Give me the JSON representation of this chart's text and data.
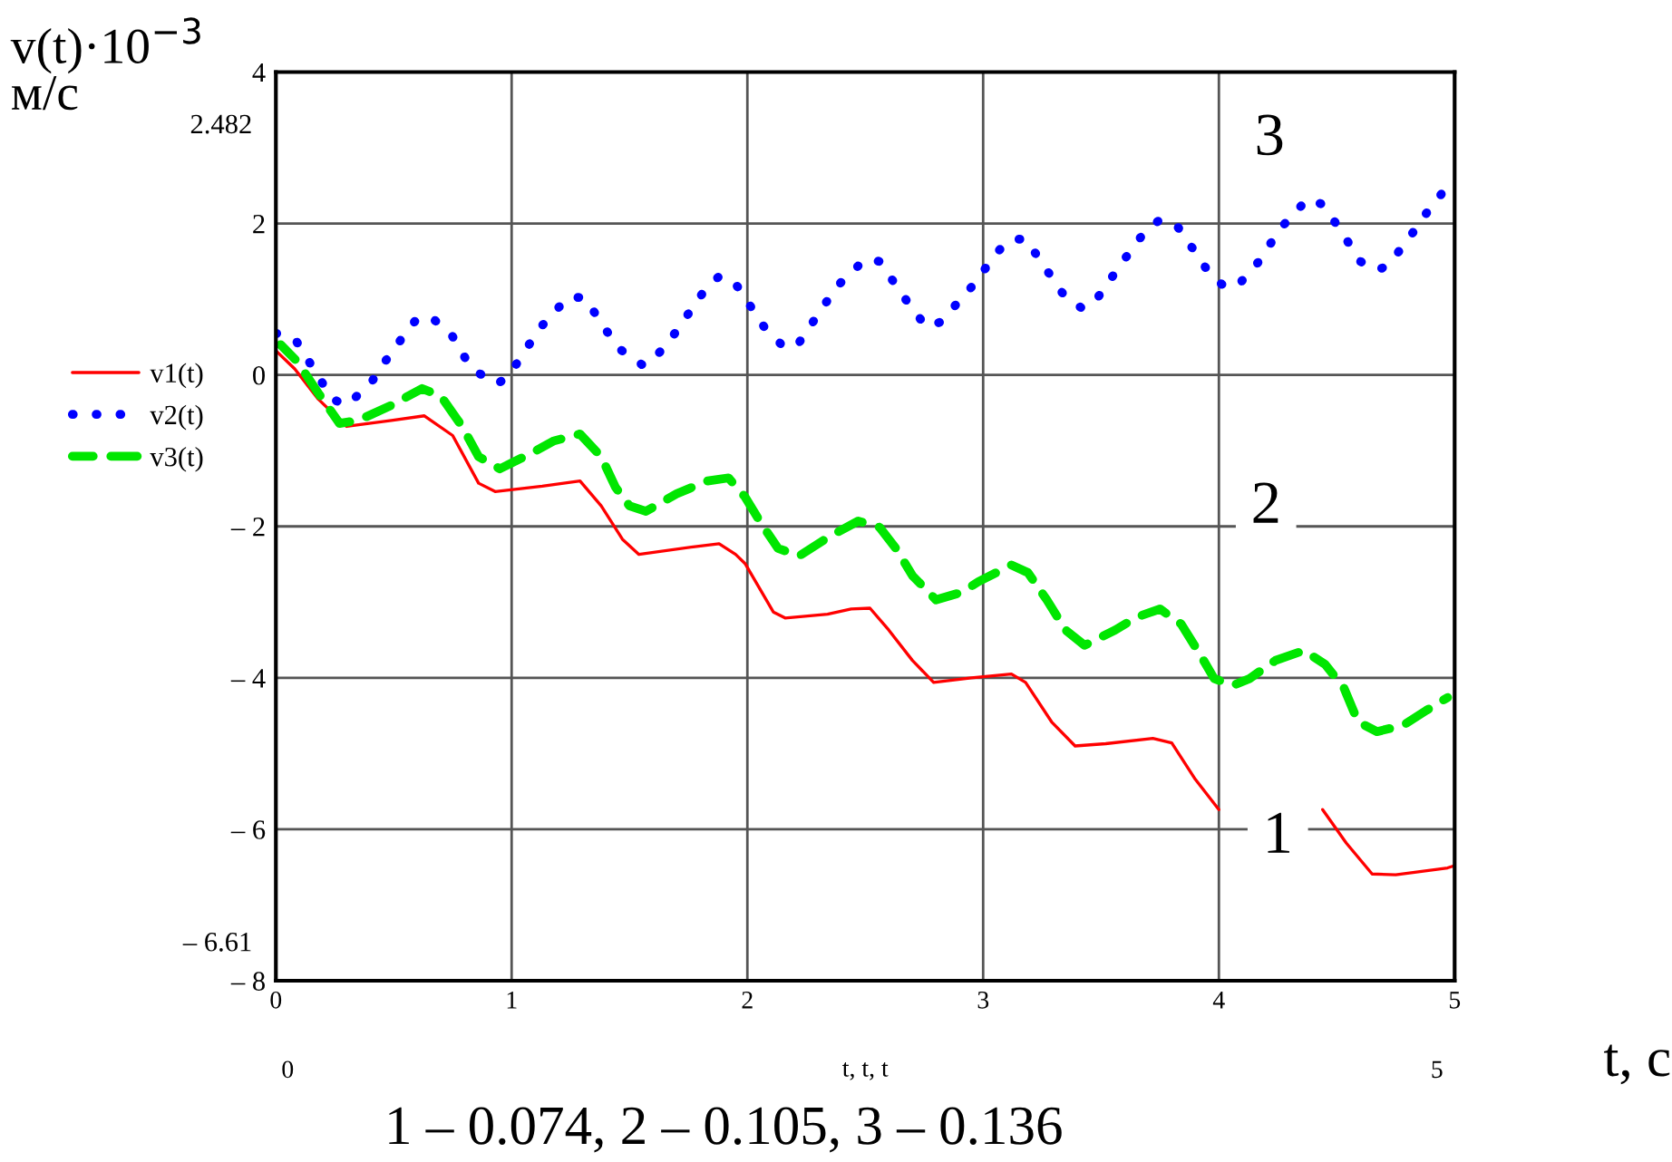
{
  "chart_data": {
    "type": "line",
    "ylabel": "v(t)·10$^{−3}$\nм/с",
    "xlabel": "t, t, t",
    "xlim": [
      0,
      5
    ],
    "xticks": [
      0,
      1,
      2,
      3,
      4,
      5
    ],
    "ylim": [
      -8,
      4
    ],
    "yticks": [
      {
        "value": -8,
        "label": "– 8"
      },
      {
        "value": -6,
        "label": "– 6"
      },
      {
        "value": -4,
        "label": "– 4"
      },
      {
        "value": -2,
        "label": "– 2"
      },
      0,
      2,
      4
    ],
    "grid": true,
    "legend": "left",
    "series": [
      {
        "name": "v1(t)",
        "color": "#ff0000",
        "line_style": "solid",
        "x": [
          0,
          0.08,
          0.18,
          0.3,
          0.49,
          0.63,
          0.75,
          0.86,
          0.93,
          1.13,
          1.29,
          1.38,
          1.47,
          1.54,
          1.77,
          1.88,
          1.95,
          1.99,
          2.11,
          2.16,
          2.34,
          2.44,
          2.52,
          2.6,
          2.7,
          2.79,
          2.95,
          3.12,
          3.18,
          3.29,
          3.39,
          3.52,
          3.72,
          3.8,
          3.9,
          4.0,
          4.22,
          4.44,
          4.54,
          4.65,
          4.75,
          4.97,
          5.0
        ],
        "values": [
          0.32,
          0.08,
          -0.32,
          -0.68,
          -0.6,
          -0.54,
          -0.8,
          -1.43,
          -1.54,
          -1.47,
          -1.4,
          -1.73,
          -2.17,
          -2.37,
          -2.27,
          -2.23,
          -2.37,
          -2.49,
          -3.13,
          -3.21,
          -3.16,
          -3.09,
          -3.08,
          -3.37,
          -3.77,
          -4.06,
          -4.0,
          -3.95,
          -4.06,
          -4.58,
          -4.9,
          -4.87,
          -4.8,
          -4.86,
          -5.34,
          -5.74,
          null,
          -5.74,
          -6.18,
          -6.59,
          -6.6,
          -6.51,
          -6.48
        ]
      },
      {
        "name": "v2(t)",
        "color": "#0000ff",
        "line_style": "dotted",
        "x": [
          0,
          0.08,
          0.16,
          0.24,
          0.3,
          0.4,
          0.49,
          0.59,
          0.65,
          0.74,
          0.83,
          0.94,
          0.99,
          1.12,
          1.24,
          1.31,
          1.45,
          1.56,
          1.65,
          1.83,
          1.88,
          1.94,
          2.07,
          2.16,
          2.22,
          2.38,
          2.5,
          2.56,
          2.68,
          2.76,
          2.82,
          2.97,
          3.05,
          3.11,
          3.18,
          3.26,
          3.35,
          3.42,
          3.47,
          3.6,
          3.69,
          3.75,
          3.82,
          3.92,
          3.97,
          4.03,
          4.08,
          4.17,
          4.26,
          4.32,
          4.38,
          4.44,
          4.51,
          4.6,
          4.67,
          4.72,
          4.83,
          4.91,
          4.95,
          5.0
        ],
        "values": [
          0.55,
          0.48,
          0.08,
          -0.32,
          -0.4,
          -0.12,
          0.3,
          0.71,
          0.78,
          0.56,
          0.08,
          -0.12,
          0.0,
          0.62,
          1.03,
          1.02,
          0.36,
          0.12,
          0.36,
          1.17,
          1.3,
          1.25,
          0.64,
          0.35,
          0.43,
          1.17,
          1.53,
          1.5,
          0.96,
          0.63,
          0.7,
          1.23,
          1.59,
          1.78,
          1.8,
          1.43,
          1.02,
          0.88,
          0.95,
          1.53,
          1.91,
          2.05,
          1.98,
          1.53,
          1.29,
          1.16,
          1.18,
          1.5,
          1.93,
          2.14,
          2.33,
          2.25,
          1.94,
          1.5,
          1.38,
          1.45,
          1.91,
          2.27,
          2.41,
          2.48
        ]
      },
      {
        "name": "v3(t)",
        "color": "#00e600",
        "line_style": "dashed",
        "x": [
          0.02,
          0.09,
          0.18,
          0.27,
          0.35,
          0.49,
          0.62,
          0.7,
          0.79,
          0.86,
          0.95,
          1.08,
          1.18,
          1.29,
          1.38,
          1.44,
          1.5,
          1.57,
          1.7,
          1.83,
          1.92,
          1.99,
          2.06,
          2.13,
          2.22,
          2.35,
          2.47,
          2.56,
          2.63,
          2.7,
          2.8,
          2.91,
          2.98,
          3.12,
          3.19,
          3.27,
          3.35,
          3.43,
          3.56,
          3.65,
          3.75,
          3.84,
          3.92,
          3.98,
          4.06,
          4.13,
          4.24,
          4.36,
          4.45,
          4.53,
          4.59,
          4.67,
          4.78,
          4.88,
          4.97
        ],
        "values": [
          0.4,
          0.18,
          -0.24,
          -0.64,
          -0.6,
          -0.4,
          -0.18,
          -0.28,
          -0.68,
          -1.08,
          -1.24,
          -1.04,
          -0.87,
          -0.78,
          -1.08,
          -1.48,
          -1.73,
          -1.8,
          -1.57,
          -1.4,
          -1.36,
          -1.61,
          -1.97,
          -2.29,
          -2.39,
          -2.13,
          -1.93,
          -2.01,
          -2.29,
          -2.65,
          -2.97,
          -2.87,
          -2.73,
          -2.51,
          -2.61,
          -2.97,
          -3.37,
          -3.57,
          -3.37,
          -3.2,
          -3.09,
          -3.29,
          -3.69,
          -4.01,
          -4.1,
          -4.01,
          -3.77,
          -3.64,
          -3.82,
          -4.13,
          -4.58,
          -4.71,
          -4.63,
          -4.43,
          -4.26
        ]
      }
    ],
    "annotations": [
      "3",
      "2",
      "1",
      "2.482",
      "– 6.61",
      "0",
      "5",
      "t, c",
      "1 – 0.074, 2 – 0.105, 3 – 0.136"
    ]
  }
}
